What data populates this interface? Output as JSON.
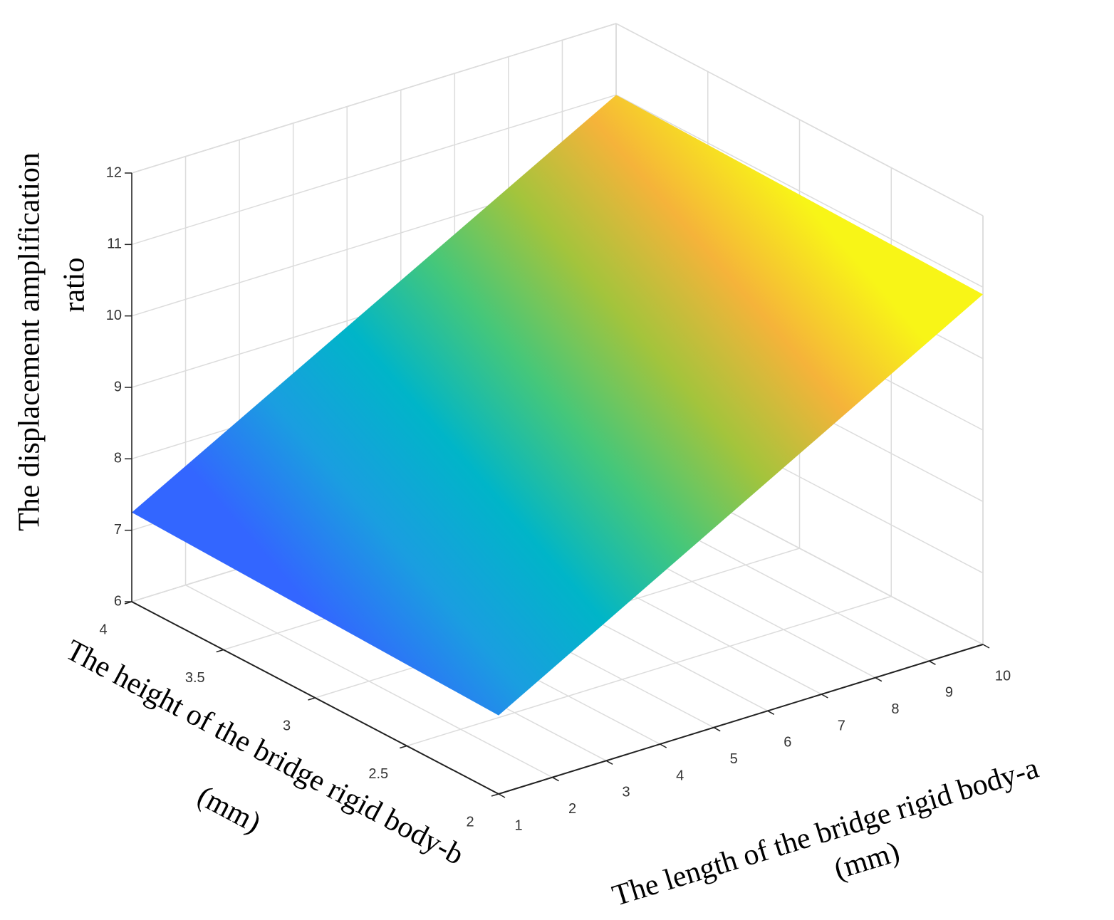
{
  "chart_data": {
    "type": "surface",
    "xlabel": [
      "The length of the bridge rigid body-a",
      "(mm)"
    ],
    "ylabel": [
      "The height of the bridge rigid body-b",
      "(mm)"
    ],
    "zlabel": [
      "The displacement amplification",
      "ratio"
    ],
    "x": [
      1,
      10
    ],
    "y": [
      2,
      4
    ],
    "z": [
      [
        7.1,
        10.9
      ],
      [
        7.25,
        11.0
      ]
    ],
    "xlim": [
      1,
      10
    ],
    "ylim": [
      2,
      4
    ],
    "zlim": [
      6,
      12
    ],
    "xticks": [
      1,
      2,
      3,
      4,
      5,
      6,
      7,
      8,
      9,
      10
    ],
    "yticks": [
      2,
      2.5,
      3,
      3.5,
      4
    ],
    "zticks": [
      6,
      7,
      8,
      9,
      10,
      11,
      12
    ],
    "grid": true,
    "colormap": [
      "#3366ff",
      "#1a9ee0",
      "#00b5c8",
      "#45c77a",
      "#a3c43c",
      "#f5b33a",
      "#f8f517"
    ]
  }
}
